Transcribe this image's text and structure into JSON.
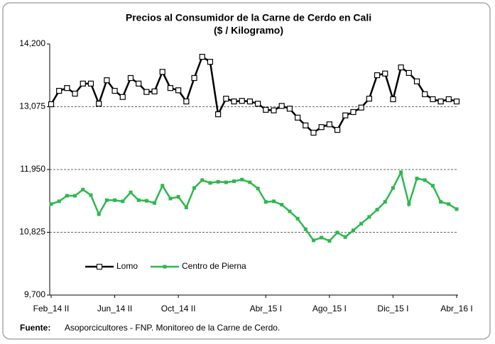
{
  "chart_data": {
    "type": "line",
    "title": "Precios al Consumidor de la Carne de Cerdo en Cali",
    "subtitle": "($ / Kilogramo)",
    "categories": [
      "Feb_14 II",
      null,
      null,
      null,
      null,
      null,
      null,
      null,
      "Jun_14 II",
      null,
      null,
      null,
      null,
      null,
      null,
      null,
      "Oct_14 II",
      null,
      null,
      null,
      null,
      null,
      null,
      null,
      null,
      null,
      null,
      "Abr_15 I",
      null,
      null,
      null,
      null,
      null,
      null,
      null,
      "Ago_15 I",
      null,
      null,
      null,
      null,
      null,
      null,
      null,
      "Dic_15 I",
      null,
      null,
      null,
      null,
      null,
      null,
      null,
      "Abr_16 I"
    ],
    "series": [
      {
        "name": "Lomo",
        "color": "#000000",
        "values": [
          13120,
          13360,
          13410,
          13310,
          13490,
          13490,
          13130,
          13550,
          13360,
          13250,
          13590,
          13490,
          13340,
          13350,
          13700,
          13410,
          13370,
          13170,
          13590,
          13970,
          13880,
          12940,
          13220,
          13170,
          13180,
          13170,
          13130,
          13020,
          13010,
          13090,
          13040,
          12880,
          12740,
          12610,
          12710,
          12760,
          12660,
          12920,
          12980,
          13060,
          13220,
          13640,
          13670,
          13210,
          13780,
          13680,
          13530,
          13300,
          13210,
          13170,
          13210,
          13170
        ]
      },
      {
        "name": "Centro de Pierna",
        "color": "#2db84d",
        "values": [
          11330,
          11380,
          11480,
          11480,
          11590,
          11490,
          11150,
          11400,
          11400,
          11380,
          11540,
          11400,
          11390,
          11350,
          11660,
          11430,
          11460,
          11270,
          11620,
          11760,
          11710,
          11730,
          11720,
          11740,
          11770,
          11720,
          11610,
          11370,
          11380,
          11320,
          11200,
          11070,
          10880,
          10680,
          10730,
          10670,
          10820,
          10740,
          10860,
          10980,
          11100,
          11230,
          11370,
          11620,
          11900,
          11330,
          11790,
          11760,
          11660,
          11370,
          11330,
          11240
        ]
      }
    ],
    "ylim": [
      9700,
      14200
    ],
    "yticks": [
      {
        "value": 9700,
        "label": "9,700"
      },
      {
        "value": 10825,
        "label": "10,825"
      },
      {
        "value": 11950,
        "label": "11,950"
      },
      {
        "value": 13075,
        "label": "13,075"
      },
      {
        "value": 14200,
        "label": "14,200"
      }
    ],
    "grid": true,
    "source_label": "Fuente:",
    "source": "Asoporcicultores - FNP. Monitoreo de la Carne de Cerdo."
  }
}
